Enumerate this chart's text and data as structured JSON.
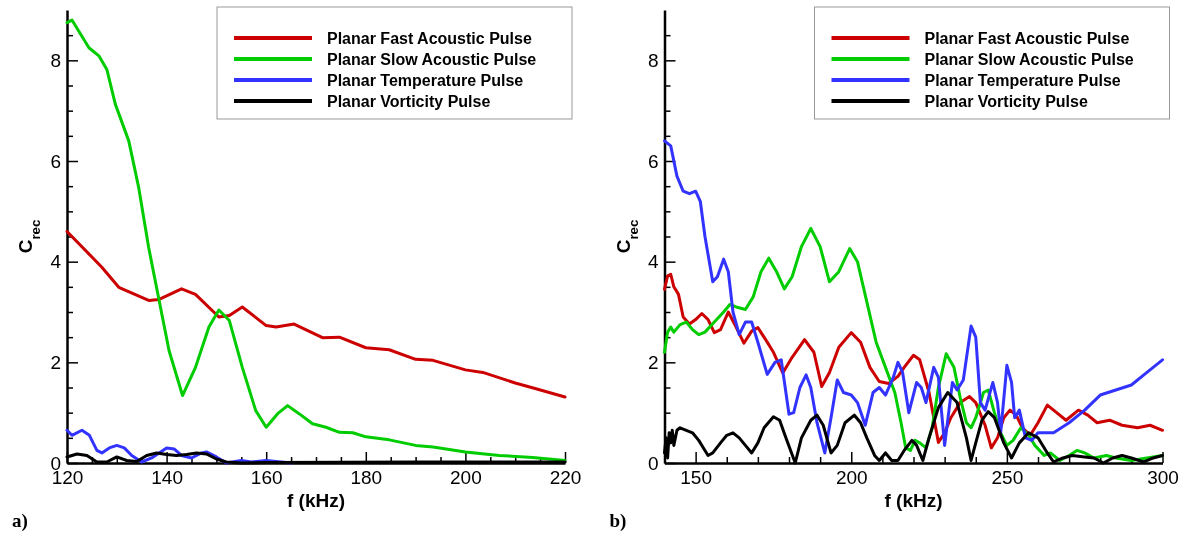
{
  "chart_data": [
    {
      "type": "line",
      "xlabel": "f (kHz)",
      "ylabel": "C$_{rec}$",
      "annotations": [
        "a)"
      ],
      "legend": "top right",
      "xlim": [
        120,
        220
      ],
      "xticks": [
        120,
        {
          "value": 125,
          "label": null
        },
        {
          "value": 130,
          "label": null
        },
        {
          "value": 135,
          "label": null
        },
        140,
        {
          "value": 145,
          "label": null
        },
        {
          "value": 150,
          "label": null
        },
        {
          "value": 155,
          "label": null
        },
        160,
        {
          "value": 165,
          "label": null
        },
        {
          "value": 170,
          "label": null
        },
        {
          "value": 175,
          "label": null
        },
        180,
        {
          "value": 185,
          "label": null
        },
        {
          "value": 190,
          "label": null
        },
        {
          "value": 195,
          "label": null
        },
        200,
        {
          "value": 205,
          "label": null
        },
        {
          "value": 210,
          "label": null
        },
        {
          "value": 215,
          "label": null
        },
        220
      ],
      "ylim": [
        0,
        9
      ],
      "yticks": [
        0,
        {
          "value": 0.5,
          "label": null
        },
        {
          "value": 1,
          "label": null
        },
        {
          "value": 1.5,
          "label": null
        },
        2,
        {
          "value": 2.5,
          "label": null
        },
        {
          "value": 3,
          "label": null
        },
        {
          "value": 3.5,
          "label": null
        },
        4,
        {
          "value": 4.5,
          "label": null
        },
        {
          "value": 5,
          "label": null
        },
        {
          "value": 5.5,
          "label": null
        },
        6,
        {
          "value": 6.5,
          "label": null
        },
        {
          "value": 7,
          "label": null
        },
        {
          "value": 7.5,
          "label": null
        },
        8,
        {
          "value": 8.5,
          "label": null
        }
      ],
      "series": [
        {
          "name": "Planar Fast Acoustic Pulse",
          "color": "#cc0000",
          "x": [
            120,
            127,
            130.4,
            136.4,
            138.5,
            143,
            145.8,
            150.5,
            152.6,
            155.2,
            160,
            162,
            165.6,
            171.3,
            174.7,
            180,
            184.7,
            190,
            193.5,
            200,
            203.5,
            210,
            214,
            220
          ],
          "values": [
            4.6,
            3.89,
            3.49,
            3.23,
            3.25,
            3.46,
            3.35,
            2.9,
            2.93,
            3.1,
            2.73,
            2.7,
            2.76,
            2.49,
            2.5,
            2.29,
            2.25,
            2.06,
            2.04,
            1.85,
            1.8,
            1.59,
            1.48,
            1.31
          ]
        },
        {
          "name": "Planar Slow Acoustic Pulse",
          "color": "#00cc00",
          "x": [
            120,
            121,
            124.4,
            126.4,
            128,
            129.7,
            132.4,
            134.4,
            136.4,
            138.5,
            140.5,
            143.2,
            145.8,
            148.5,
            150.5,
            152.6,
            155.2,
            157.9,
            160,
            162.3,
            164.3,
            166.6,
            169.3,
            172,
            174.7,
            177.4,
            180,
            184.7,
            190,
            193.5,
            200,
            206.8,
            213.5,
            220
          ],
          "values": [
            8.75,
            8.8,
            8.25,
            8.09,
            7.82,
            7.13,
            6.4,
            5.47,
            4.28,
            3.23,
            2.23,
            1.34,
            1.9,
            2.7,
            3.04,
            2.83,
            1.9,
            1.04,
            0.71,
            0.98,
            1.14,
            0.98,
            0.78,
            0.71,
            0.61,
            0.6,
            0.52,
            0.46,
            0.35,
            0.32,
            0.22,
            0.15,
            0.11,
            0.05
          ]
        },
        {
          "name": "Planar Temperature Pulse",
          "color": "#3333ff",
          "x": [
            120,
            121,
            123,
            124.5,
            126,
            127,
            128.5,
            130,
            131.5,
            133,
            135,
            137,
            138.5,
            140,
            141.5,
            143,
            145,
            147,
            148,
            150,
            152,
            155,
            157,
            160,
            165
          ],
          "values": [
            0.65,
            0.55,
            0.65,
            0.55,
            0.25,
            0.2,
            0.3,
            0.35,
            0.3,
            0.15,
            0.02,
            0.1,
            0.2,
            0.3,
            0.28,
            0.15,
            0.1,
            0.2,
            0.22,
            0.12,
            0,
            0.05,
            0.02,
            0.05,
            0
          ]
        },
        {
          "name": "Planar Vorticity Pulse",
          "color": "#000000",
          "x": [
            120,
            122,
            124,
            126,
            128,
            130,
            132,
            134,
            136,
            138,
            140,
            142,
            144,
            146,
            148,
            150,
            152,
            155,
            160,
            190,
            220
          ],
          "values": [
            0.12,
            0.18,
            0.15,
            0.02,
            0.02,
            0.12,
            0.05,
            0.03,
            0.15,
            0.2,
            0.17,
            0.15,
            0.17,
            0.2,
            0.18,
            0.08,
            0.02,
            0,
            0.01,
            0.02,
            0.02
          ]
        }
      ]
    },
    {
      "type": "line",
      "xlabel": "f (kHz)",
      "ylabel": "C$_{rec}$",
      "annotations": [
        "b)"
      ],
      "legend": "top right",
      "xlim": [
        140,
        300
      ],
      "xticks": [
        {
          "value": 140,
          "label": null
        },
        150,
        {
          "value": 160,
          "label": null
        },
        {
          "value": 170,
          "label": null
        },
        {
          "value": 180,
          "label": null
        },
        {
          "value": 190,
          "label": null
        },
        200,
        {
          "value": 210,
          "label": null
        },
        {
          "value": 220,
          "label": null
        },
        {
          "value": 230,
          "label": null
        },
        {
          "value": 240,
          "label": null
        },
        250,
        {
          "value": 260,
          "label": null
        },
        {
          "value": 270,
          "label": null
        },
        {
          "value": 280,
          "label": null
        },
        {
          "value": 290,
          "label": null
        },
        300
      ],
      "ylim": [
        0,
        9
      ],
      "yticks": [
        0,
        {
          "value": 0.5,
          "label": null
        },
        {
          "value": 1,
          "label": null
        },
        {
          "value": 1.5,
          "label": null
        },
        2,
        {
          "value": 2.5,
          "label": null
        },
        {
          "value": 3,
          "label": null
        },
        {
          "value": 3.5,
          "label": null
        },
        4,
        {
          "value": 4.5,
          "label": null
        },
        {
          "value": 5,
          "label": null
        },
        {
          "value": 5.5,
          "label": null
        },
        6,
        {
          "value": 6.5,
          "label": null
        },
        {
          "value": 7,
          "label": null
        },
        {
          "value": 7.5,
          "label": null
        },
        8,
        {
          "value": 8.5,
          "label": null
        }
      ],
      "series": [
        {
          "name": "Planar Fast Acoustic Pulse",
          "color": "#cc0000",
          "x": [
            140,
            141,
            142,
            143,
            144.5,
            146,
            148,
            150,
            152,
            154,
            156,
            158,
            160.5,
            163,
            165.5,
            168,
            170,
            172.5,
            175,
            178,
            181,
            185,
            188,
            190.5,
            193,
            196,
            200,
            203,
            206,
            209,
            212,
            215,
            217,
            220,
            222,
            225,
            228,
            230,
            232,
            235,
            238,
            240,
            242,
            243,
            245,
            247,
            249,
            251,
            253,
            255,
            257.5,
            260,
            263,
            266,
            269,
            273,
            276,
            279,
            283,
            287,
            292,
            296,
            300
          ],
          "values": [
            3.45,
            3.72,
            3.75,
            3.5,
            3.35,
            2.9,
            2.76,
            2.85,
            2.97,
            2.85,
            2.59,
            2.65,
            3.0,
            2.7,
            2.38,
            2.62,
            2.69,
            2.45,
            2.2,
            1.79,
            2.1,
            2.45,
            2.2,
            1.52,
            1.8,
            2.3,
            2.59,
            2.4,
            1.9,
            1.62,
            1.58,
            1.72,
            1.9,
            2.14,
            2.05,
            1.4,
            0.41,
            0.6,
            0.9,
            1.2,
            1.32,
            1.2,
            0.9,
            0.75,
            0.3,
            0.5,
            0.9,
            1.05,
            0.95,
            0.7,
            0.55,
            0.8,
            1.15,
            1.0,
            0.85,
            1.05,
            0.95,
            0.8,
            0.85,
            0.75,
            0.7,
            0.75,
            0.65
          ]
        },
        {
          "name": "Planar Slow Acoustic Pulse",
          "color": "#00cc00",
          "x": [
            140,
            141,
            142,
            143,
            145,
            147,
            149,
            151,
            153,
            156,
            159,
            161,
            163,
            166,
            168.5,
            171,
            173.5,
            176,
            178.5,
            181,
            184,
            187,
            190,
            193,
            196,
            199.5,
            202,
            205,
            208,
            211,
            214,
            216,
            217.5,
            219,
            220.5,
            222,
            224,
            226,
            228,
            230.5,
            233,
            235,
            237,
            238.5,
            240,
            242.5,
            244,
            246,
            248,
            250,
            252,
            254.5,
            257,
            259,
            262,
            264,
            267,
            270,
            272.5,
            275,
            278,
            282,
            285,
            290,
            295,
            300
          ],
          "values": [
            2.2,
            2.6,
            2.7,
            2.6,
            2.75,
            2.8,
            2.65,
            2.55,
            2.6,
            2.8,
            3.0,
            3.15,
            3.1,
            3.05,
            3.3,
            3.8,
            4.07,
            3.8,
            3.46,
            3.7,
            4.3,
            4.66,
            4.3,
            3.6,
            3.8,
            4.26,
            4.0,
            3.2,
            2.4,
            1.9,
            1.4,
            0.8,
            0.3,
            0.25,
            0.45,
            0.4,
            0.3,
            0.7,
            1.5,
            2.17,
            1.9,
            1.3,
            0.8,
            0.7,
            0.9,
            1.4,
            1.45,
            1.0,
            0.6,
            0.35,
            0.45,
            0.7,
            0.55,
            0.35,
            0.15,
            0.2,
            0.05,
            0.15,
            0.25,
            0.2,
            0.1,
            0.15,
            0.1,
            0.05,
            0.1,
            0.15
          ]
        },
        {
          "name": "Planar Temperature Pulse",
          "color": "#3333ff",
          "x": [
            140,
            142,
            144,
            146,
            148,
            150,
            151.5,
            153,
            155.5,
            157,
            159,
            160.5,
            162,
            164,
            166,
            168,
            170,
            173,
            175.5,
            177.5,
            180,
            181.5,
            183.5,
            185.5,
            187,
            189,
            191.5,
            193.5,
            195.5,
            197.5,
            200,
            202,
            204.5,
            207,
            209,
            211,
            213.5,
            215,
            216.5,
            218.5,
            221,
            222.5,
            224,
            226.5,
            228,
            230,
            232.5,
            234,
            236,
            238.5,
            240,
            241.5,
            243,
            245.5,
            247,
            248,
            250,
            251.5,
            252.5,
            254,
            256,
            258,
            260,
            265,
            270,
            275,
            280,
            285,
            290,
            295,
            300
          ],
          "values": [
            6.4,
            6.3,
            5.7,
            5.4,
            5.35,
            5.4,
            5.2,
            4.5,
            3.6,
            3.7,
            4.05,
            3.8,
            3.0,
            2.55,
            2.8,
            2.8,
            2.4,
            1.76,
            2.0,
            2.05,
            0.97,
            1.0,
            1.5,
            1.75,
            1.5,
            0.8,
            0.2,
            0.9,
            1.65,
            1.4,
            1.35,
            1.2,
            0.75,
            1.4,
            1.5,
            1.35,
            1.7,
            2.0,
            1.8,
            1.0,
            1.6,
            1.5,
            1.2,
            1.9,
            1.7,
            0.35,
            1.6,
            1.45,
            1.65,
            2.72,
            2.5,
            1.2,
            1.05,
            1.6,
            1.2,
            0.6,
            1.94,
            1.6,
            0.9,
            1.05,
            0.5,
            0.45,
            0.6,
            0.6,
            0.8,
            1.05,
            1.35,
            1.45,
            1.55,
            1.8,
            2.05
          ]
        },
        {
          "name": "Planar Vorticity Pulse",
          "color": "#000000",
          "x": [
            140,
            140.5,
            141,
            141.5,
            142,
            142.5,
            143,
            144,
            145,
            147,
            149,
            151,
            153,
            154,
            155.5,
            158,
            160,
            162,
            164,
            166,
            168,
            170,
            172,
            175,
            177,
            179,
            182,
            184,
            187,
            189,
            191,
            193.5,
            195.5,
            198,
            201,
            203,
            205,
            207.5,
            209,
            211,
            213,
            215,
            217,
            219.5,
            221,
            223,
            225,
            228,
            231,
            234,
            237,
            238.5,
            240,
            242,
            244,
            246,
            249,
            251.5,
            254,
            257,
            260,
            263,
            265,
            268,
            271,
            275,
            278,
            281,
            284,
            287,
            290,
            294,
            297,
            300
          ],
          "values": [
            0.2,
            0.5,
            0.1,
            0.6,
            0.4,
            0.65,
            0.35,
            0.65,
            0.7,
            0.65,
            0.6,
            0.45,
            0.25,
            0.15,
            0.2,
            0.4,
            0.55,
            0.6,
            0.5,
            0.35,
            0.2,
            0.4,
            0.7,
            0.92,
            0.85,
            0.5,
            0,
            0.5,
            0.85,
            0.95,
            0.75,
            0.2,
            0.35,
            0.8,
            0.95,
            0.8,
            0.5,
            0.15,
            0.05,
            0.2,
            0.05,
            0.05,
            0.25,
            0.45,
            0.35,
            0.05,
            0.5,
            1.1,
            1.4,
            1.2,
            0.5,
            0.05,
            0.4,
            0.85,
            1.02,
            0.9,
            0.4,
            0.1,
            0.4,
            0.6,
            0.5,
            0.2,
            0.02,
            0.1,
            0.15,
            0.12,
            0.1,
            0,
            0.1,
            0.15,
            0.1,
            0.02,
            0.1,
            0.15
          ]
        }
      ]
    }
  ]
}
